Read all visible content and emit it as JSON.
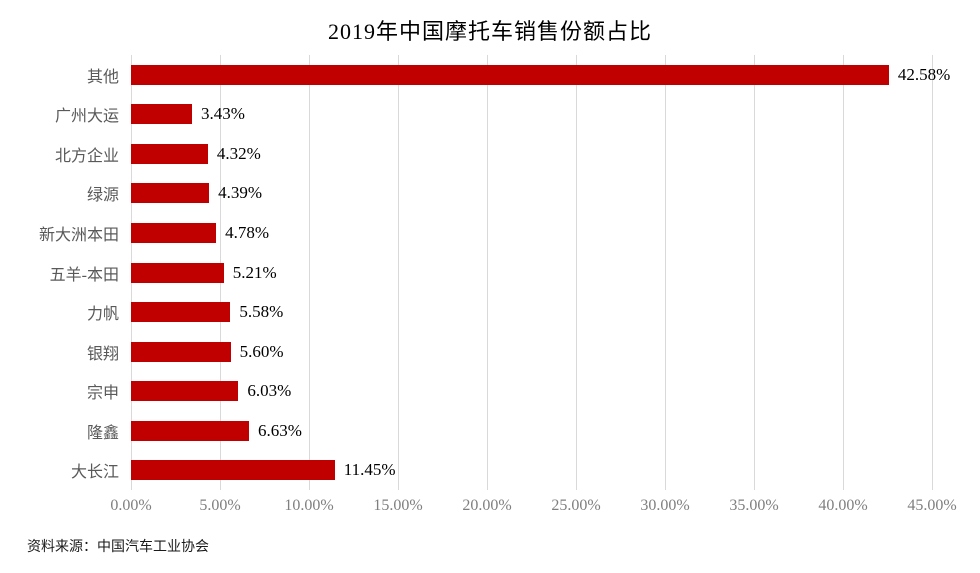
{
  "title": "2019年中国摩托车销售份额占比",
  "source_note": "资料来源：中国汽车工业协会",
  "colors": {
    "bar": "#c00000",
    "gridline": "#d9d9d9",
    "category_label": "#595959",
    "tick_label": "#7f7f7f",
    "value_label": "#000000",
    "title": "#000000"
  },
  "chart_data": {
    "type": "bar",
    "orientation": "horizontal",
    "title": "2019年中国摩托车销售份额占比",
    "categories": [
      "其他",
      "广州大运",
      "北方企业",
      "绿源",
      "新大洲本田",
      "五羊-本田",
      "力帆",
      "银翔",
      "宗申",
      "隆鑫",
      "大长江"
    ],
    "values": [
      42.58,
      3.43,
      4.32,
      4.39,
      4.78,
      5.21,
      5.58,
      5.6,
      6.03,
      6.63,
      11.45
    ],
    "value_labels": [
      "42.58%",
      "3.43%",
      "4.32%",
      "4.39%",
      "4.78%",
      "5.21%",
      "5.58%",
      "5.60%",
      "6.03%",
      "6.63%",
      "11.45%"
    ],
    "x_tick_values": [
      0,
      5,
      10,
      15,
      20,
      25,
      30,
      35,
      40,
      45
    ],
    "x_tick_labels": [
      "0.00%",
      "5.00%",
      "10.00%",
      "15.00%",
      "20.00%",
      "25.00%",
      "30.00%",
      "35.00%",
      "40.00%",
      "45.00%"
    ],
    "xlim": [
      0,
      45
    ],
    "xlabel": "",
    "ylabel": "",
    "grid": "vertical",
    "legend": "none",
    "data_labels": "outside-end"
  }
}
